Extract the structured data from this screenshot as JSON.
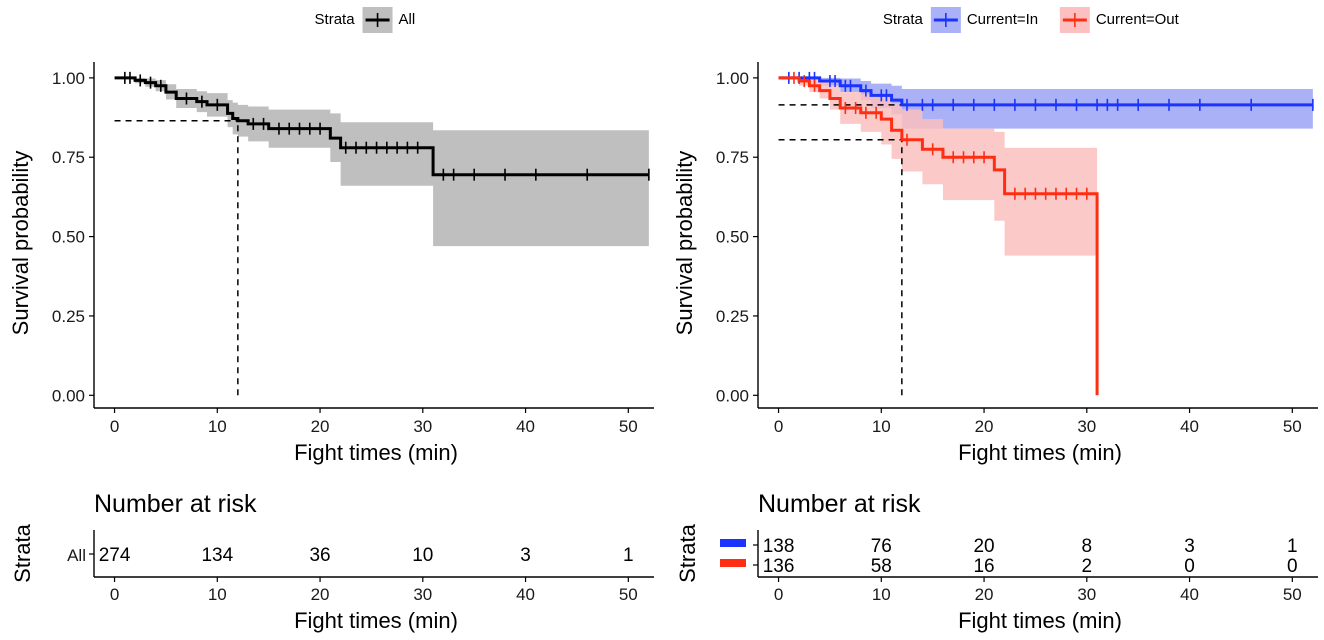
{
  "chart_data": [
    {
      "type": "line",
      "xlabel": "Fight times (min)",
      "ylabel": "Survival probability",
      "xlim": [
        -2,
        52.5
      ],
      "ylim": [
        -0.04,
        1.05
      ],
      "xticks": [
        0,
        10,
        20,
        30,
        40,
        50
      ],
      "yticks": [
        "0.00",
        "0.25",
        "0.50",
        "0.75",
        "1.00"
      ],
      "ytick_values": [
        0,
        0.25,
        0.5,
        0.75,
        1.0
      ],
      "legend": {
        "title": "Strata",
        "position": "top",
        "entries": [
          "All"
        ]
      },
      "median_guides": [
        {
          "x": 12,
          "y": 0.865
        }
      ],
      "series": [
        {
          "name": "All",
          "color": "#000000",
          "band_color": "#bfbfbf",
          "steps": [
            [
              0,
              1.0
            ],
            [
              2,
              0.992
            ],
            [
              3,
              0.985
            ],
            [
              4,
              0.975
            ],
            [
              5,
              0.955
            ],
            [
              6,
              0.935
            ],
            [
              8,
              0.925
            ],
            [
              9,
              0.915
            ],
            [
              11,
              0.888
            ],
            [
              11.5,
              0.872
            ],
            [
              12,
              0.865
            ],
            [
              13,
              0.855
            ],
            [
              15,
              0.84
            ],
            [
              21,
              0.81
            ],
            [
              22,
              0.78
            ],
            [
              31,
              0.695
            ],
            [
              52,
              0.695
            ]
          ],
          "lower": [
            [
              0,
              1.0
            ],
            [
              2,
              0.983
            ],
            [
              3,
              0.972
            ],
            [
              4,
              0.958
            ],
            [
              5,
              0.932
            ],
            [
              6,
              0.905
            ],
            [
              8,
              0.892
            ],
            [
              9,
              0.878
            ],
            [
              11,
              0.845
            ],
            [
              11.5,
              0.822
            ],
            [
              12,
              0.815
            ],
            [
              13,
              0.8
            ],
            [
              15,
              0.78
            ],
            [
              21,
              0.735
            ],
            [
              22,
              0.66
            ],
            [
              31,
              0.47
            ],
            [
              52,
              0.47
            ]
          ],
          "upper": [
            [
              0,
              1.0
            ],
            [
              2,
              1.0
            ],
            [
              3,
              0.998
            ],
            [
              4,
              0.993
            ],
            [
              5,
              0.98
            ],
            [
              6,
              0.965
            ],
            [
              8,
              0.958
            ],
            [
              9,
              0.952
            ],
            [
              11,
              0.93
            ],
            [
              11.5,
              0.922
            ],
            [
              12,
              0.915
            ],
            [
              13,
              0.91
            ],
            [
              15,
              0.9
            ],
            [
              21,
              0.888
            ],
            [
              22,
              0.86
            ],
            [
              31,
              0.835
            ],
            [
              52,
              0.835
            ]
          ],
          "censor": [
            1,
            1.5,
            2.5,
            3.5,
            4.5,
            7,
            8.5,
            10,
            13.5,
            14.5,
            16,
            17,
            18,
            19,
            20,
            22.5,
            23.5,
            24.5,
            25.5,
            26.5,
            27.5,
            28.5,
            29.5,
            32,
            33,
            35,
            38,
            41,
            46,
            52
          ]
        }
      ],
      "risk_table": {
        "title": "Number at risk",
        "ylabel": "Strata",
        "xlabel": "Fight times (min)",
        "times": [
          0,
          10,
          20,
          30,
          40,
          50
        ],
        "rows": [
          {
            "label": "All",
            "color": "#000000",
            "counts": [
              "274",
              "134",
              "36",
              "10",
              "3",
              "1"
            ]
          }
        ]
      }
    },
    {
      "type": "line",
      "xlabel": "Fight times (min)",
      "ylabel": "Survival probability",
      "xlim": [
        -2,
        52.5
      ],
      "ylim": [
        -0.04,
        1.05
      ],
      "xticks": [
        0,
        10,
        20,
        30,
        40,
        50
      ],
      "yticks": [
        "0.00",
        "0.25",
        "0.50",
        "0.75",
        "1.00"
      ],
      "ytick_values": [
        0,
        0.25,
        0.5,
        0.75,
        1.0
      ],
      "legend": {
        "title": "Strata",
        "position": "top",
        "entries": [
          "Current=In",
          "Current=Out"
        ]
      },
      "median_guides": [
        {
          "x": 12,
          "y": 0.915
        },
        {
          "x": 12,
          "y": 0.805
        }
      ],
      "series": [
        {
          "name": "Current=In",
          "color": "#1a33ff",
          "band_color": "#aab1f7",
          "steps": [
            [
              0,
              1.0
            ],
            [
              4,
              0.99
            ],
            [
              6,
              0.975
            ],
            [
              8,
              0.96
            ],
            [
              9,
              0.945
            ],
            [
              11,
              0.93
            ],
            [
              12,
              0.915
            ],
            [
              52,
              0.915
            ]
          ],
          "lower": [
            [
              0,
              1.0
            ],
            [
              4,
              0.975
            ],
            [
              6,
              0.955
            ],
            [
              8,
              0.93
            ],
            [
              9,
              0.905
            ],
            [
              11,
              0.885
            ],
            [
              12,
              0.84
            ],
            [
              52,
              0.835
            ]
          ],
          "upper": [
            [
              0,
              1.0
            ],
            [
              4,
              1.0
            ],
            [
              6,
              0.998
            ],
            [
              8,
              0.99
            ],
            [
              9,
              0.982
            ],
            [
              11,
              0.975
            ],
            [
              12,
              0.965
            ],
            [
              52,
              0.96
            ]
          ],
          "censor": [
            1,
            2,
            3,
            3.5,
            5,
            5.5,
            6.5,
            7,
            8.5,
            10,
            10.5,
            12.5,
            14,
            15,
            17,
            19,
            21,
            23,
            25,
            27,
            29,
            31,
            32,
            33,
            35,
            38,
            41,
            46,
            52
          ]
        },
        {
          "name": "Current=Out",
          "color": "#ff2e12",
          "band_color": "#fcc0c0",
          "steps": [
            [
              0,
              1.0
            ],
            [
              2,
              0.99
            ],
            [
              3,
              0.975
            ],
            [
              4,
              0.96
            ],
            [
              5,
              0.935
            ],
            [
              6,
              0.905
            ],
            [
              8,
              0.89
            ],
            [
              10,
              0.87
            ],
            [
              11,
              0.835
            ],
            [
              12,
              0.805
            ],
            [
              14,
              0.775
            ],
            [
              16,
              0.75
            ],
            [
              21,
              0.71
            ],
            [
              22,
              0.635
            ],
            [
              31,
              0.0
            ]
          ],
          "lower": [
            [
              0,
              1.0
            ],
            [
              2,
              0.975
            ],
            [
              3,
              0.955
            ],
            [
              4,
              0.935
            ],
            [
              5,
              0.9
            ],
            [
              6,
              0.855
            ],
            [
              8,
              0.83
            ],
            [
              10,
              0.79
            ],
            [
              11,
              0.745
            ],
            [
              12,
              0.705
            ],
            [
              14,
              0.665
            ],
            [
              16,
              0.615
            ],
            [
              21,
              0.55
            ],
            [
              22,
              0.44
            ],
            [
              31,
              0.44
            ]
          ],
          "upper": [
            [
              0,
              1.0
            ],
            [
              2,
              1.0
            ],
            [
              3,
              0.998
            ],
            [
              4,
              0.99
            ],
            [
              5,
              0.975
            ],
            [
              6,
              0.955
            ],
            [
              8,
              0.95
            ],
            [
              10,
              0.94
            ],
            [
              11,
              0.92
            ],
            [
              12,
              0.9
            ],
            [
              14,
              0.87
            ],
            [
              16,
              0.84
            ],
            [
              21,
              0.83
            ],
            [
              22,
              0.78
            ],
            [
              31,
              0.78
            ]
          ],
          "censor": [
            1.5,
            2.5,
            3.5,
            6.5,
            7.5,
            8.5,
            9.5,
            12.5,
            15,
            17,
            18,
            19,
            20,
            23,
            24,
            25,
            26,
            27,
            28,
            29,
            30
          ]
        }
      ],
      "risk_table": {
        "title": "Number at risk",
        "ylabel": "Strata",
        "xlabel": "Fight times (min)",
        "times": [
          0,
          10,
          20,
          30,
          40,
          50
        ],
        "rows": [
          {
            "label": "",
            "color": "#1a33ff",
            "counts": [
              "138",
              "76",
              "20",
              "8",
              "3",
              "1"
            ]
          },
          {
            "label": "",
            "color": "#ff2e12",
            "counts": [
              "136",
              "58",
              "16",
              "2",
              "0",
              "0"
            ]
          }
        ]
      }
    }
  ]
}
